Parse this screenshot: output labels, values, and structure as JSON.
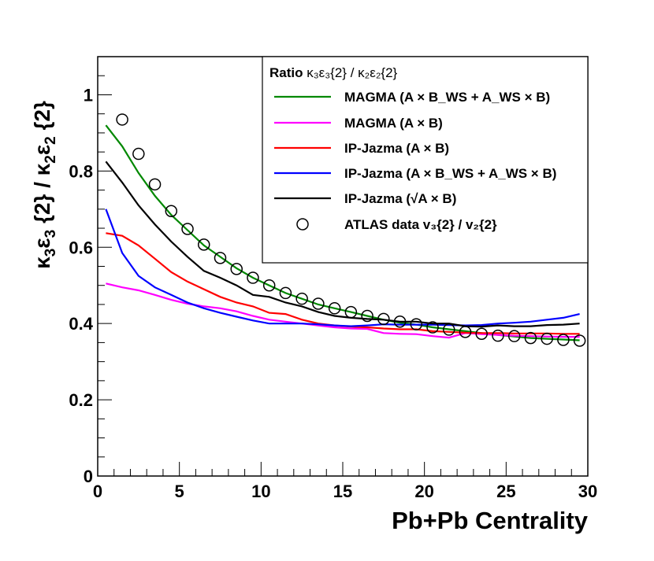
{
  "chart_data": {
    "type": "line",
    "xlabel": "Pb+Pb Centrality",
    "ylabel_parts": {
      "k3": "κ",
      "k3sub": "3",
      "e3": "ε",
      "e3sub": "3",
      "n3": " {2} / ",
      "k2": "κ",
      "k2sub": "2",
      "e2": "ε",
      "e2sub": "2",
      "n2": " {2}"
    },
    "xlim": [
      0,
      30
    ],
    "ylim": [
      0,
      1.1
    ],
    "x_ticks": [
      0,
      5,
      10,
      15,
      20,
      25,
      30
    ],
    "x_tick_labels": [
      "0",
      "5",
      "10",
      "15",
      "20",
      "25",
      "30"
    ],
    "y_ticks": [
      0,
      0.2,
      0.4,
      0.6,
      0.8,
      1
    ],
    "y_tick_labels": [
      "0",
      "0.2",
      "0.4",
      "0.6",
      "0.8",
      "1"
    ],
    "grid": false,
    "legend": {
      "placement": "top-right",
      "header": {
        "prefix": "Ratio ",
        "math": "κ₃ε₃{2} / κ₂ε₂{2}"
      },
      "entries": [
        {
          "label": "MAGMA (A × B_WS + A_WS × B)",
          "color": "#008800",
          "marker": "line"
        },
        {
          "label": "MAGMA (A × B)",
          "color": "#ff00ff",
          "marker": "line"
        },
        {
          "label": "IP-Jazma (A × B)",
          "color": "#ff0000",
          "marker": "line"
        },
        {
          "label": "IP-Jazma (A × B_WS + A_WS × B)",
          "color": "#0000ff",
          "marker": "line"
        },
        {
          "label": "IP-Jazma (√A × B)",
          "color": "#000000",
          "marker": "line"
        },
        {
          "label": "ATLAS data v₃{2} / v₂{2}",
          "color": "#000000",
          "marker": "open-circle"
        }
      ]
    },
    "series": [
      {
        "name": "MAGMA (A × B_WS + A_WS × B)",
        "color": "#008800",
        "x": [
          0.5,
          1.5,
          2.5,
          3.5,
          4.5,
          5.5,
          6.5,
          7.5,
          8.5,
          9.5,
          10.5,
          11.5,
          12.5,
          13.5,
          14.5,
          15.5,
          16.5,
          17.5,
          18.5,
          19.5,
          20.5,
          21.5,
          22.5,
          23.5,
          24.5,
          25.5,
          26.5,
          27.5,
          28.5,
          29.5
        ],
        "y": [
          0.92,
          0.865,
          0.795,
          0.735,
          0.685,
          0.645,
          0.605,
          0.575,
          0.545,
          0.52,
          0.5,
          0.48,
          0.465,
          0.45,
          0.44,
          0.43,
          0.42,
          0.41,
          0.402,
          0.397,
          0.39,
          0.385,
          0.38,
          0.375,
          0.37,
          0.366,
          0.362,
          0.36,
          0.358,
          0.356
        ]
      },
      {
        "name": "MAGMA (A × B)",
        "color": "#ff00ff",
        "x": [
          0.5,
          1.5,
          2.5,
          3.5,
          4.5,
          5.5,
          6.5,
          7.5,
          8.5,
          9.5,
          10.5,
          11.5,
          12.5,
          13.5,
          14.5,
          15.5,
          16.5,
          17.5,
          18.5,
          19.5,
          20.5,
          21.5,
          22.5,
          23.5,
          24.5,
          25.5,
          26.5,
          27.5,
          28.5,
          29.5
        ],
        "y": [
          0.505,
          0.495,
          0.487,
          0.475,
          0.462,
          0.452,
          0.445,
          0.44,
          0.432,
          0.42,
          0.41,
          0.405,
          0.4,
          0.395,
          0.39,
          0.387,
          0.386,
          0.375,
          0.373,
          0.372,
          0.367,
          0.363,
          0.375,
          0.372,
          0.37,
          0.368,
          0.367,
          0.366,
          0.365,
          0.365
        ]
      },
      {
        "name": "IP-Jazma (A × B)",
        "color": "#ff0000",
        "x": [
          0.5,
          1.5,
          2.5,
          3.5,
          4.5,
          5.5,
          6.5,
          7.5,
          8.5,
          9.5,
          10.5,
          11.5,
          12.5,
          13.5,
          14.5,
          15.5,
          16.5,
          17.5,
          18.5,
          19.5,
          20.5,
          21.5,
          22.5,
          23.5,
          24.5,
          25.5,
          26.5,
          27.5,
          28.5,
          29.5
        ],
        "y": [
          0.637,
          0.63,
          0.605,
          0.57,
          0.535,
          0.51,
          0.49,
          0.47,
          0.455,
          0.445,
          0.428,
          0.425,
          0.41,
          0.4,
          0.395,
          0.392,
          0.39,
          0.387,
          0.385,
          0.385,
          0.38,
          0.378,
          0.376,
          0.375,
          0.375,
          0.374,
          0.374,
          0.374,
          0.373,
          0.373
        ]
      },
      {
        "name": "IP-Jazma (A × B_WS + A_WS × B)",
        "color": "#0000ff",
        "x": [
          0.5,
          1.5,
          2.5,
          3.5,
          4.5,
          5.5,
          6.5,
          7.5,
          8.5,
          9.5,
          10.5,
          11.5,
          12.5,
          13.5,
          14.5,
          15.5,
          16.5,
          17.5,
          18.5,
          19.5,
          20.5,
          21.5,
          22.5,
          23.5,
          24.5,
          25.5,
          26.5,
          27.5,
          28.5,
          29.5
        ],
        "y": [
          0.7,
          0.585,
          0.525,
          0.495,
          0.475,
          0.455,
          0.44,
          0.428,
          0.418,
          0.408,
          0.4,
          0.4,
          0.4,
          0.398,
          0.395,
          0.393,
          0.395,
          0.398,
          0.397,
          0.397,
          0.397,
          0.396,
          0.395,
          0.396,
          0.4,
          0.402,
          0.405,
          0.41,
          0.415,
          0.425
        ]
      },
      {
        "name": "IP-Jazma (√A × B)",
        "color": "#000000",
        "x": [
          0.5,
          1.5,
          2.5,
          3.5,
          4.5,
          5.5,
          6.5,
          7.5,
          8.5,
          9.5,
          10.5,
          11.5,
          12.5,
          13.5,
          14.5,
          15.5,
          16.5,
          17.5,
          18.5,
          19.5,
          20.5,
          21.5,
          22.5,
          23.5,
          24.5,
          25.5,
          26.5,
          27.5,
          28.5,
          29.5
        ],
        "y": [
          0.825,
          0.77,
          0.71,
          0.66,
          0.615,
          0.575,
          0.538,
          0.52,
          0.5,
          0.475,
          0.47,
          0.455,
          0.445,
          0.43,
          0.42,
          0.415,
          0.412,
          0.41,
          0.405,
          0.405,
          0.4,
          0.4,
          0.393,
          0.392,
          0.395,
          0.393,
          0.393,
          0.396,
          0.397,
          0.4
        ]
      },
      {
        "name": "ATLAS data v₃{2} / v₂{2}",
        "color": "#000000",
        "marker": "open-circle",
        "x": [
          1.5,
          2.5,
          3.5,
          4.5,
          5.5,
          6.5,
          7.5,
          8.5,
          9.5,
          10.5,
          11.5,
          12.5,
          13.5,
          14.5,
          15.5,
          16.5,
          17.5,
          18.5,
          19.5,
          20.5,
          21.5,
          22.5,
          23.5,
          24.5,
          25.5,
          26.5,
          27.5,
          28.5,
          29.5
        ],
        "y": [
          0.935,
          0.845,
          0.765,
          0.695,
          0.648,
          0.607,
          0.572,
          0.543,
          0.52,
          0.5,
          0.48,
          0.465,
          0.452,
          0.44,
          0.43,
          0.42,
          0.412,
          0.405,
          0.398,
          0.39,
          0.384,
          0.378,
          0.373,
          0.368,
          0.367,
          0.362,
          0.36,
          0.357,
          0.355
        ]
      }
    ]
  }
}
